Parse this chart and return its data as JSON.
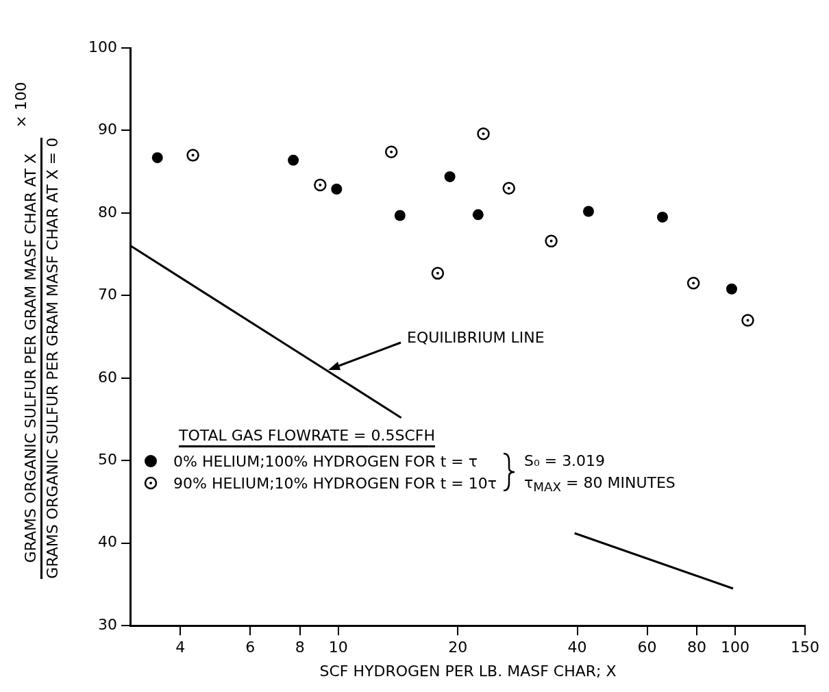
{
  "chart_data": {
    "type": "scatter",
    "xlabel": "SCF HYDROGEN PER LB. MASF CHAR; X",
    "ylabel": "GRAMS ORGANIC SULFUR PER GRAM MASF CHAR AT X\nGRAMS ORGANIC SULFUR PER GRAM MASF CHAR AT X = 0",
    "legend_title": "TOTAL GAS FLOWRATE = 0.5SCFH",
    "legend": "bottom left",
    "marker": "circle",
    "log": "x",
    "grid": false,
    "xlim": [
      3,
      150
    ],
    "xticks": [
      4,
      6,
      8,
      10,
      20,
      40,
      60,
      80,
      100,
      150
    ],
    "ylim": [
      30,
      100
    ],
    "yticks": [
      30,
      40,
      50,
      60,
      70,
      80,
      90,
      100
    ],
    "series": [
      {
        "name": "0% HELIUM;100% HYDROGEN FOR t = τ",
        "color": "#000000",
        "x": [
          3.5,
          7.7,
          9.9,
          14.3,
          19.1,
          22.5,
          42.7,
          65.6,
          98
        ],
        "values": [
          86.7,
          86.4,
          82.9,
          79.7,
          84.4,
          79.8,
          80.2,
          79.5,
          70.8
        ]
      },
      {
        "name": "90% HELIUM;10% HYDROGEN FOR t = 10τ",
        "color": "#000000",
        "x": [
          4.3,
          9.0,
          13.6,
          17.8,
          23.2,
          26.9,
          34.4,
          78.5,
          107.6
        ],
        "values": [
          87.0,
          83.4,
          87.4,
          72.7,
          89.6,
          83.0,
          76.6,
          71.5,
          67.0
        ]
      },
      {
        "type": "line",
        "marker": "none",
        "color": "#000000",
        "x": [
          3,
          14.4,
          25,
          39.4,
          98.8
        ],
        "values": [
          76,
          55.2,
          null,
          41.2,
          34.5
        ]
      }
    ],
    "annotations": [
      "EQUILIBRIUM LINE",
      "S₀ = 3.019",
      "τ$_{MAX}$ = 80 MINUTES",
      "× 100"
    ]
  }
}
